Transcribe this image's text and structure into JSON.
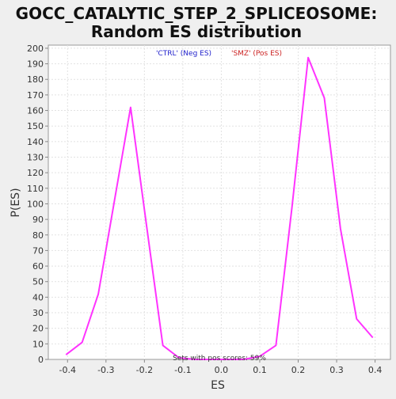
{
  "chart_data": {
    "type": "line",
    "title": "GOCC_CATALYTIC_STEP_2_SPLICEOSOME: Random ES distribution",
    "title_lines": [
      "GOCC_CATALYTIC_STEP_2_SPLICEOSOME:",
      "Random ES distribution"
    ],
    "xlabel": "ES",
    "ylabel": "P(ES)",
    "xlim": [
      -0.45,
      0.44
    ],
    "ylim": [
      0,
      202
    ],
    "x_ticks": [
      -0.4,
      -0.3,
      -0.2,
      -0.1,
      0.0,
      0.1,
      0.2,
      0.3,
      0.4
    ],
    "x_tick_labels": [
      "-0.4",
      "-0.3",
      "-0.2",
      "-0.1",
      "0.0",
      "0.1",
      "0.2",
      "0.3",
      "0.4"
    ],
    "y_ticks": [
      0,
      10,
      20,
      30,
      40,
      50,
      60,
      70,
      80,
      90,
      100,
      110,
      120,
      130,
      140,
      150,
      160,
      170,
      180,
      190,
      200
    ],
    "y_tick_labels": [
      "0",
      "10",
      "20",
      "30",
      "40",
      "50",
      "60",
      "70",
      "80",
      "90",
      "100",
      "110",
      "120",
      "130",
      "140",
      "150",
      "160",
      "170",
      "180",
      "190",
      "200"
    ],
    "grid": true,
    "legend": {
      "placement": "top-center",
      "entries": [
        {
          "label": "'CTRL' (Neg ES)",
          "color": "#2222cc"
        },
        {
          "label": "'SMZ' (Pos ES)",
          "color": "#cc2222"
        }
      ]
    },
    "annotation": "Sets with pos scores: 59%",
    "series": [
      {
        "color": "#ff33ff",
        "x": [
          -0.404,
          -0.362,
          -0.32,
          -0.278,
          -0.236,
          -0.194,
          -0.152,
          -0.11,
          -0.068,
          -0.026,
          0.016,
          0.058,
          0.1,
          0.142,
          0.184,
          0.226,
          0.268,
          0.31,
          0.352,
          0.394
        ],
        "y": [
          3,
          11,
          42,
          102,
          162,
          85,
          9,
          1,
          0,
          0,
          0,
          0,
          2,
          9,
          98,
          194,
          168,
          84,
          26,
          14
        ]
      }
    ],
    "colors": {
      "background": "#efefef",
      "plot_background": "#ffffff",
      "grid": "#e2e2e2",
      "axis": "#888888",
      "text": "#333333",
      "title": "#111111",
      "line": "#ff33ff"
    }
  }
}
